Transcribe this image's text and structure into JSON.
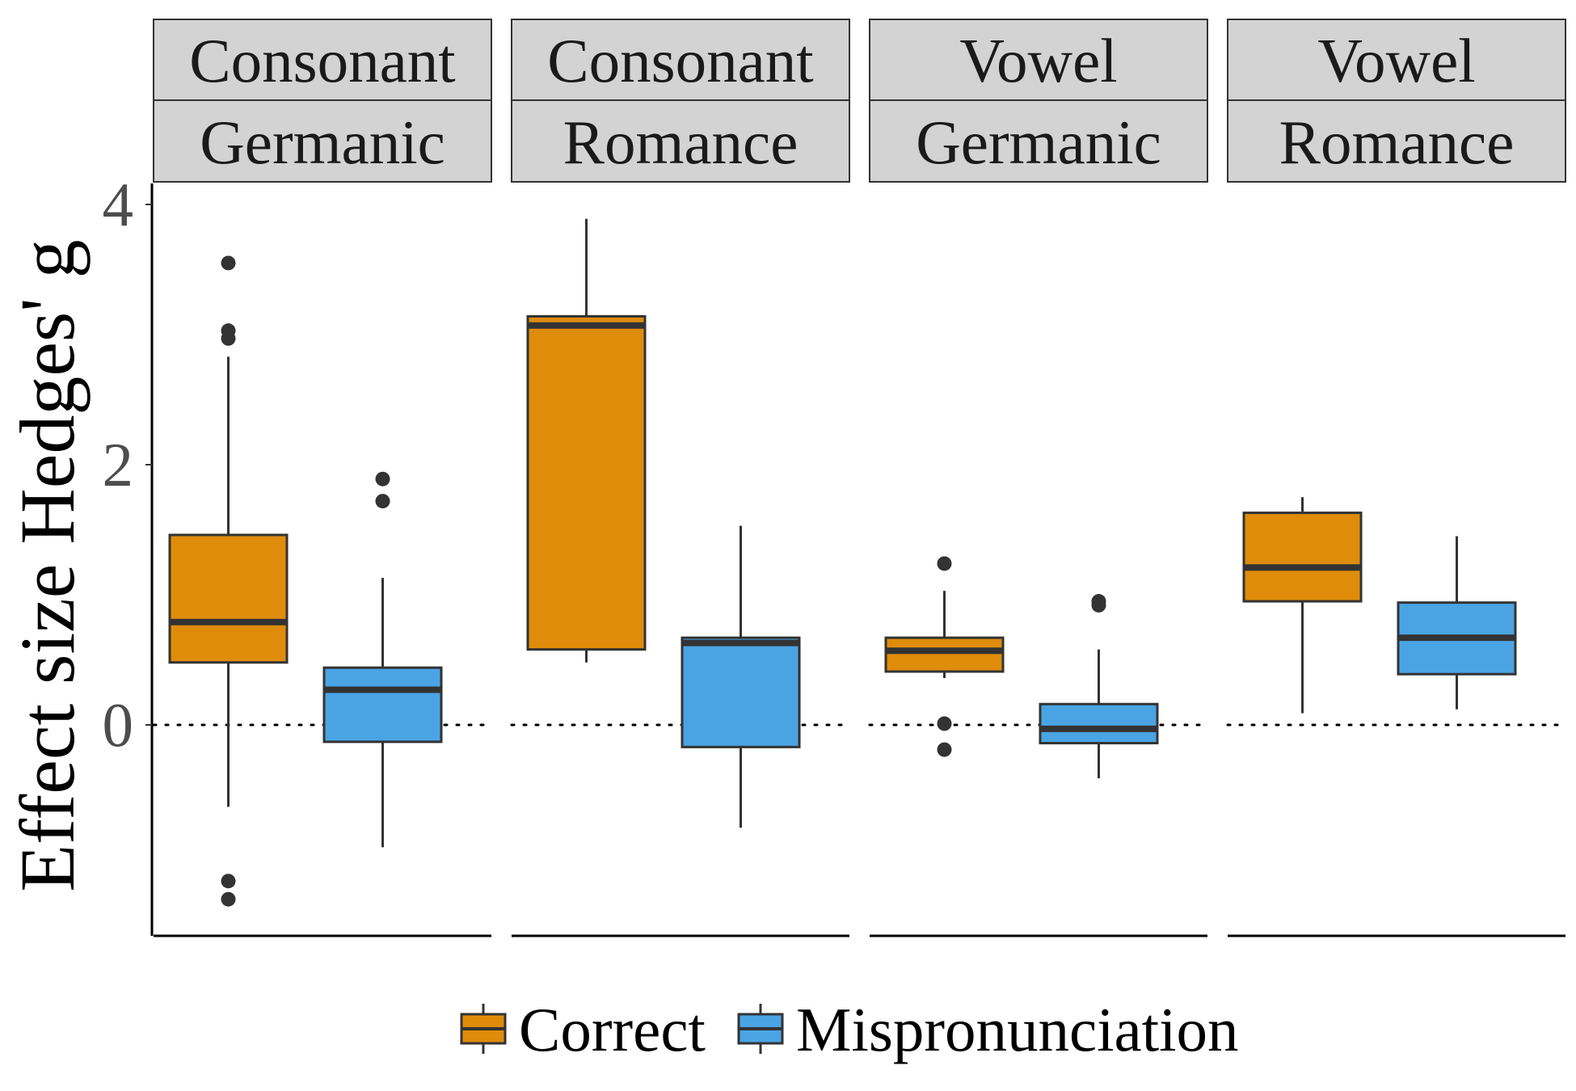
{
  "chart_data": {
    "type": "boxplot",
    "ylabel": "Effect size Hedges' g",
    "xlabel": "",
    "ylim": [
      -1.62,
      4.1
    ],
    "yticks": [
      0,
      2,
      4
    ],
    "reference_line": 0,
    "grid": false,
    "legend_position": "bottom",
    "facets": [
      {
        "row1": "Consonant",
        "row2": "Germanic"
      },
      {
        "row1": "Consonant",
        "row2": "Romance"
      },
      {
        "row1": "Vowel",
        "row2": "Germanic"
      },
      {
        "row1": "Vowel",
        "row2": "Romance"
      }
    ],
    "series": [
      {
        "name": "Correct",
        "color": "#df8c0a",
        "boxes": [
          {
            "whisker_low": -0.63,
            "q1": 0.48,
            "median": 0.79,
            "q3": 1.46,
            "whisker_high": 2.83,
            "outliers": [
              3.55,
              3.03,
              2.97,
              -1.2,
              -1.34
            ]
          },
          {
            "whisker_low": 0.48,
            "q1": 0.58,
            "median": 3.07,
            "q3": 3.14,
            "whisker_high": 3.89,
            "outliers": []
          },
          {
            "whisker_low": 0.36,
            "q1": 0.41,
            "median": 0.57,
            "q3": 0.67,
            "whisker_high": 1.03,
            "outliers": [
              1.24,
              0.01,
              -0.19
            ]
          },
          {
            "whisker_low": 0.09,
            "q1": 0.95,
            "median": 1.21,
            "q3": 1.63,
            "whisker_high": 1.75,
            "outliers": []
          }
        ]
      },
      {
        "name": "Mispronunciation",
        "color": "#4aa4e4",
        "boxes": [
          {
            "whisker_low": -0.94,
            "q1": -0.13,
            "median": 0.27,
            "q3": 0.44,
            "whisker_high": 1.13,
            "outliers": [
              1.89,
              1.72
            ]
          },
          {
            "whisker_low": -0.79,
            "q1": -0.17,
            "median": 0.63,
            "q3": 0.67,
            "whisker_high": 1.53,
            "outliers": []
          },
          {
            "whisker_low": -0.41,
            "q1": -0.14,
            "median": -0.03,
            "q3": 0.16,
            "whisker_high": 0.58,
            "outliers": [
              0.95,
              0.92
            ]
          },
          {
            "whisker_low": 0.12,
            "q1": 0.39,
            "median": 0.67,
            "q3": 0.94,
            "whisker_high": 1.45,
            "outliers": []
          }
        ]
      }
    ]
  }
}
